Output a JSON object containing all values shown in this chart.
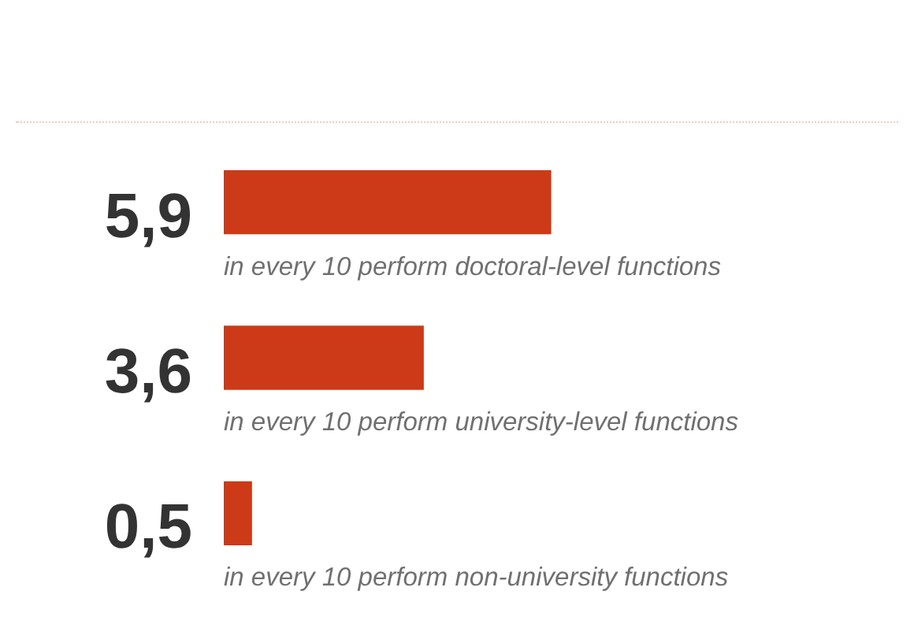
{
  "chart_data": {
    "type": "bar",
    "orientation": "horizontal",
    "categories": [
      "in every 10 perform doctoral-level functions",
      "in every 10 perform university-level functions",
      "in every 10 perform non-university functions"
    ],
    "values": [
      5.9,
      3.6,
      0.5
    ],
    "value_labels": [
      "5,9",
      "3,6",
      "0,5"
    ],
    "color": "#cc3a18",
    "tick_labels": "y"
  }
}
